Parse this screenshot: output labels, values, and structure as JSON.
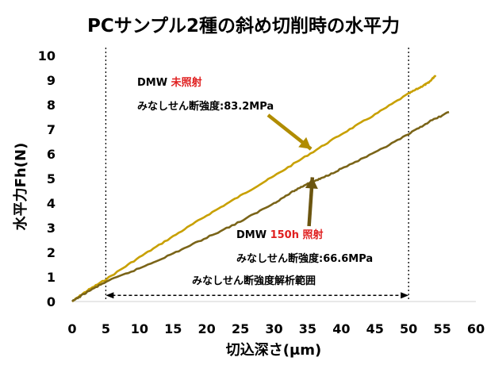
{
  "chart_data": {
    "type": "line",
    "title": "PCサンプル2種の斜め切削時の水平力",
    "xlabel": "切込深さ(μm)",
    "ylabel": "水平力Fh(N)",
    "xlim": [
      0,
      60
    ],
    "ylim": [
      0,
      10
    ],
    "x_ticks": [
      "0",
      "5",
      "10",
      "15",
      "20",
      "25",
      "30",
      "35",
      "40",
      "45",
      "50",
      "55",
      "60"
    ],
    "y_ticks": [
      "0",
      "1",
      "2",
      "3",
      "4",
      "5",
      "6",
      "7",
      "8",
      "9",
      "10"
    ],
    "grid": false,
    "legend": "none",
    "series": [
      {
        "color": "#c8a000",
        "points": [
          [
            0,
            0
          ],
          [
            2,
            0.4
          ],
          [
            5,
            0.9
          ],
          [
            10,
            1.8
          ],
          [
            15,
            2.65
          ],
          [
            20,
            3.5
          ],
          [
            25,
            4.3
          ],
          [
            30,
            5.1
          ],
          [
            35,
            5.95
          ],
          [
            40,
            6.8
          ],
          [
            45,
            7.6
          ],
          [
            50,
            8.45
          ],
          [
            52,
            8.75
          ],
          [
            53,
            8.9
          ],
          [
            54,
            9.2
          ]
        ]
      },
      {
        "color": "#7a6418",
        "points": [
          [
            0,
            0
          ],
          [
            2,
            0.35
          ],
          [
            5,
            0.8
          ],
          [
            10,
            1.35
          ],
          [
            15,
            1.95
          ],
          [
            20,
            2.6
          ],
          [
            25,
            3.25
          ],
          [
            30,
            4.0
          ],
          [
            33,
            4.5
          ],
          [
            35,
            4.8
          ],
          [
            37,
            5.0
          ],
          [
            40,
            5.4
          ],
          [
            45,
            6.05
          ],
          [
            50,
            6.8
          ],
          [
            53,
            7.3
          ],
          [
            56,
            7.7
          ]
        ]
      }
    ],
    "vlines": [
      5,
      50
    ],
    "range_arrow": {
      "x_start": 5,
      "x_end": 50,
      "y": 0.25,
      "label": "みなしせん断強度解析範囲"
    },
    "annotations": [
      {
        "line1_prefix": "DMW ",
        "line1_highlight": "未照射",
        "line2": "みなしせん断強度:83.2MPa"
      },
      {
        "line1_prefix": "DMW ",
        "line1_highlight": "150h 照射",
        "line2": "みなしせん断強度:66.6MPa"
      }
    ]
  },
  "colors": {
    "series_light": "#c8a000",
    "series_dark": "#7a6418",
    "arrow1": "#b08c00",
    "arrow2": "#6b5510",
    "highlight": "#e02020"
  }
}
